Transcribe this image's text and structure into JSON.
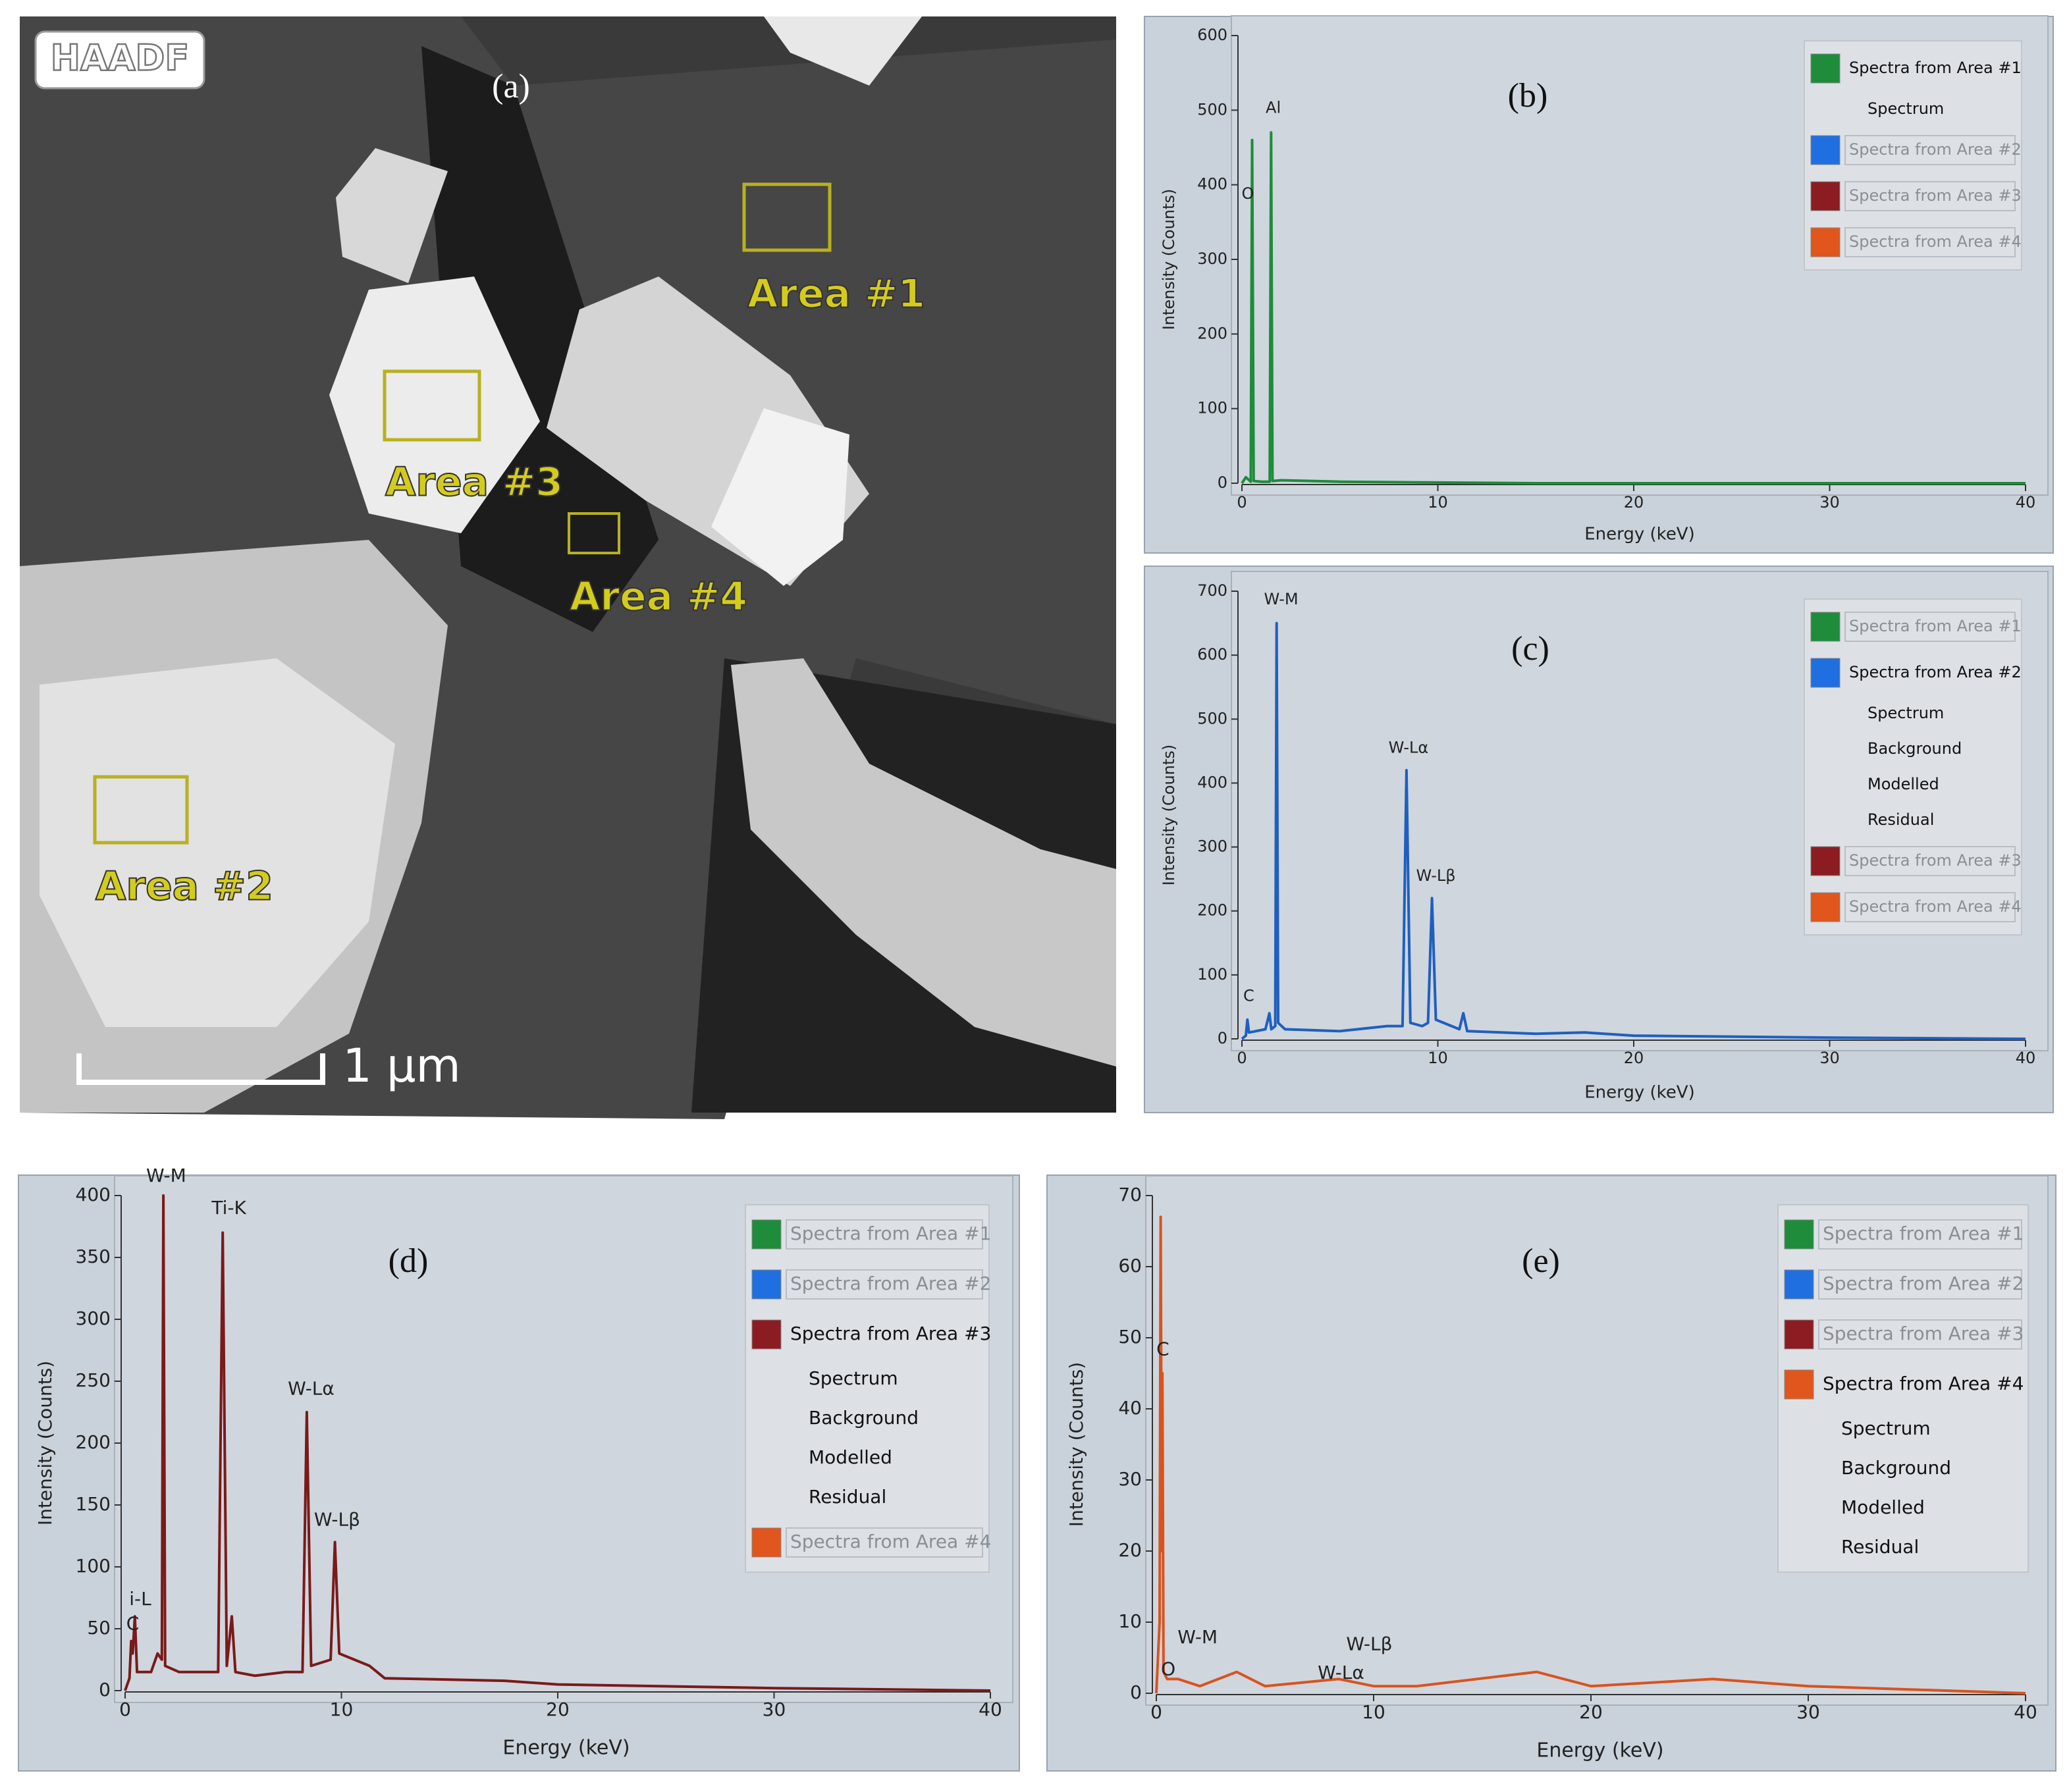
{
  "image": {
    "detector": "HAADF",
    "title": "(a)",
    "areas": [
      "Area #1",
      "Area #2",
      "Area #3",
      "Area #4"
    ],
    "scale_bar": "1 µm"
  },
  "chart_data": [
    {
      "type": "line",
      "title": "(b)",
      "xlabel": "Energy (keV)",
      "ylabel": "Intensity (Counts)",
      "xlim": [
        0,
        40
      ],
      "xticks": [
        0,
        10,
        20,
        30,
        40
      ],
      "ylim": [
        0,
        600
      ],
      "yticks": [
        0,
        100,
        200,
        300,
        400,
        500,
        600
      ],
      "series": [
        {
          "name": "Spectra from Area #1",
          "color": "#1e8c3a",
          "x": [
            0,
            0.2,
            0.45,
            0.52,
            0.6,
            1.0,
            1.42,
            1.49,
            1.56,
            2,
            5,
            10,
            15,
            20,
            30,
            40
          ],
          "values": [
            0,
            8,
            2,
            460,
            3,
            2,
            2,
            470,
            3,
            4,
            2,
            1,
            0,
            0,
            0,
            0
          ]
        }
      ],
      "annotations": [
        "O",
        "Al"
      ],
      "legend": [
        {
          "label": "Spectra from Area #1",
          "color": "#1e8c3a",
          "dimmed": false
        },
        {
          "label": "Spectrum"
        },
        {
          "label": "Spectra from Area #2",
          "color": "#1f6fe0",
          "dimmed": true
        },
        {
          "label": "Spectra from Area #3",
          "color": "#8b1d22",
          "dimmed": true
        },
        {
          "label": "Spectra from Area #4",
          "color": "#e0561c",
          "dimmed": true
        }
      ]
    },
    {
      "type": "line",
      "title": "(c)",
      "xlabel": "Energy (keV)",
      "ylabel": "Intensity (Counts)",
      "xlim": [
        0,
        40
      ],
      "xticks": [
        0,
        10,
        20,
        30,
        40
      ],
      "ylim": [
        0,
        700
      ],
      "yticks": [
        0,
        100,
        200,
        300,
        400,
        500,
        600,
        700
      ],
      "series": [
        {
          "name": "Spectra from Area #2",
          "color": "#1f5fbf",
          "x": [
            0,
            0.2,
            0.28,
            0.36,
            1.2,
            1.4,
            1.5,
            1.7,
            1.77,
            1.85,
            2.2,
            5,
            7.4,
            8.2,
            8.4,
            8.6,
            9.2,
            9.5,
            9.7,
            9.9,
            11.1,
            11.3,
            11.5,
            15,
            17.5,
            20,
            30,
            40
          ],
          "values": [
            0,
            5,
            30,
            10,
            15,
            40,
            15,
            20,
            650,
            25,
            15,
            12,
            20,
            20,
            420,
            25,
            20,
            25,
            220,
            30,
            15,
            40,
            12,
            8,
            10,
            5,
            2,
            0
          ]
        }
      ],
      "annotations": [
        "W-M",
        "W-Lα",
        "W-Lβ",
        "C"
      ],
      "legend": [
        {
          "label": "Spectra from Area #1",
          "color": "#1e8c3a",
          "dimmed": true
        },
        {
          "label": "Spectra from Area #2",
          "color": "#1f6fe0",
          "dimmed": false
        },
        {
          "label": "Spectrum"
        },
        {
          "label": "Background"
        },
        {
          "label": "Modelled"
        },
        {
          "label": "Residual"
        },
        {
          "label": "Spectra from Area #3",
          "color": "#8b1d22",
          "dimmed": true
        },
        {
          "label": "Spectra from Area #4",
          "color": "#e0561c",
          "dimmed": true
        }
      ]
    },
    {
      "type": "line",
      "title": "(d)",
      "xlabel": "Energy (keV)",
      "ylabel": "Intensity (Counts)",
      "xlim": [
        0,
        40
      ],
      "xticks": [
        0,
        10,
        20,
        30,
        40
      ],
      "ylim": [
        0,
        400
      ],
      "yticks": [
        0,
        50,
        100,
        150,
        200,
        250,
        300,
        350,
        400
      ],
      "series": [
        {
          "name": "Spectra from Area #3",
          "color": "#7a1a1a",
          "x": [
            0,
            0.2,
            0.28,
            0.35,
            0.45,
            0.55,
            1.2,
            1.5,
            1.7,
            1.77,
            1.85,
            2.5,
            4.3,
            4.51,
            4.7,
            4.93,
            5.1,
            6,
            7.4,
            8.2,
            8.4,
            8.6,
            9.5,
            9.7,
            9.9,
            11.3,
            12,
            17.5,
            20,
            30,
            40
          ],
          "values": [
            0,
            10,
            40,
            30,
            60,
            15,
            15,
            30,
            25,
            400,
            20,
            15,
            15,
            370,
            20,
            60,
            15,
            12,
            15,
            15,
            225,
            20,
            25,
            120,
            30,
            20,
            10,
            8,
            5,
            2,
            0
          ]
        }
      ],
      "annotations": [
        "W-M",
        "Ti-K",
        "W-Lα",
        "W-Lβ",
        "i-L",
        "C"
      ],
      "legend": [
        {
          "label": "Spectra from Area #1",
          "color": "#1e8c3a",
          "dimmed": true
        },
        {
          "label": "Spectra from Area #2",
          "color": "#1f6fe0",
          "dimmed": true
        },
        {
          "label": "Spectra from Area #3",
          "color": "#8b1d22",
          "dimmed": false
        },
        {
          "label": "Spectrum"
        },
        {
          "label": "Background"
        },
        {
          "label": "Modelled"
        },
        {
          "label": "Residual"
        },
        {
          "label": "Spectra from Area #4",
          "color": "#e0561c",
          "dimmed": true
        }
      ]
    },
    {
      "type": "line",
      "title": "(e)",
      "xlabel": "Energy (keV)",
      "ylabel": "Intensity (Counts)",
      "xlim": [
        0,
        40
      ],
      "xticks": [
        0,
        10,
        20,
        30,
        40
      ],
      "ylim": [
        0,
        70
      ],
      "yticks": [
        0,
        10,
        20,
        30,
        40,
        50,
        60,
        70
      ],
      "series": [
        {
          "name": "Spectra from Area #4",
          "color": "#d9531e",
          "x": [
            0,
            0.15,
            0.2,
            0.25,
            0.28,
            0.33,
            0.5,
            1,
            2,
            3.7,
            5,
            8.4,
            10,
            12,
            17.5,
            20,
            25.6,
            30,
            40
          ],
          "values": [
            0,
            10,
            67,
            20,
            45,
            3,
            2,
            2,
            1,
            3,
            1,
            2,
            1,
            1,
            3,
            1,
            2,
            1,
            0
          ]
        }
      ],
      "annotations": [
        "C",
        "W-M",
        "O",
        "W-Lα",
        "W-Lβ"
      ],
      "legend": [
        {
          "label": "Spectra from Area #1",
          "color": "#1e8c3a",
          "dimmed": true
        },
        {
          "label": "Spectra from Area #2",
          "color": "#1f6fe0",
          "dimmed": true
        },
        {
          "label": "Spectra from Area #3",
          "color": "#8b1d22",
          "dimmed": true
        },
        {
          "label": "Spectra from Area #4",
          "color": "#e0561c",
          "dimmed": false
        },
        {
          "label": "Spectrum"
        },
        {
          "label": "Background"
        },
        {
          "label": "Modelled"
        },
        {
          "label": "Residual"
        }
      ]
    }
  ]
}
